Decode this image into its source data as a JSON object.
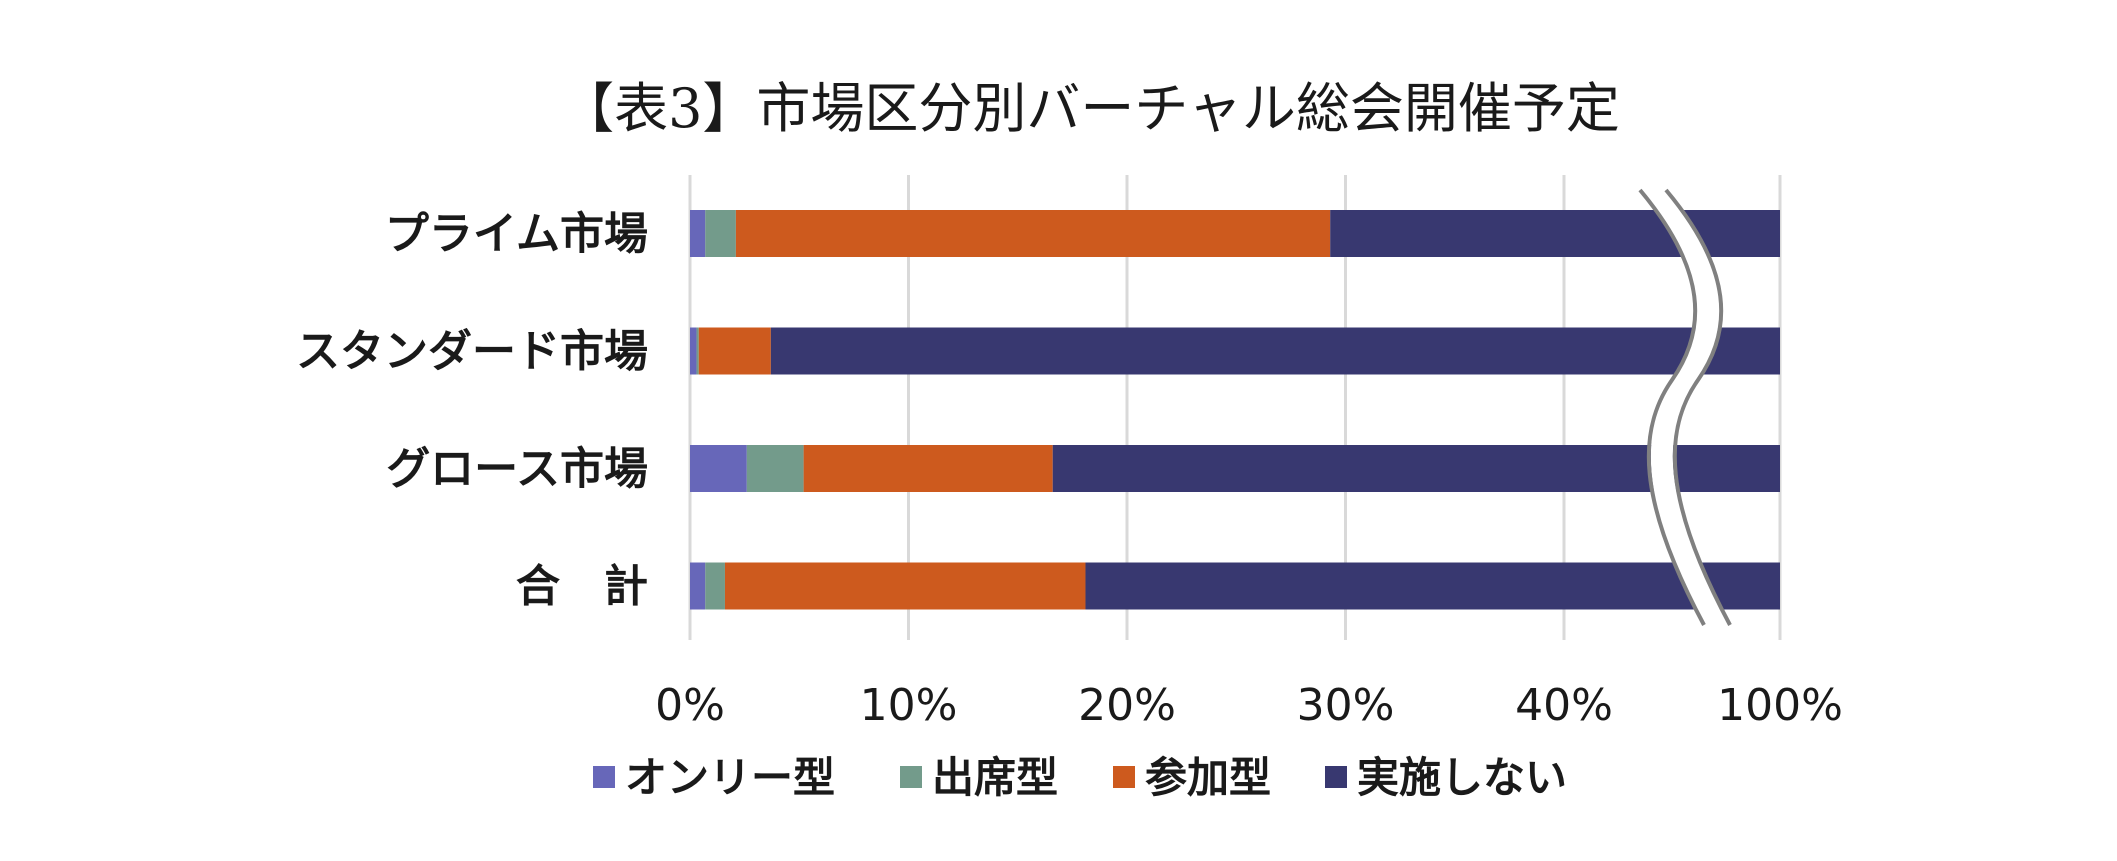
{
  "chart_data": {
    "type": "bar",
    "orientation": "horizontal",
    "stacked": true,
    "title": "【表3】市場区分別バーチャル総会開催予定",
    "categories": [
      "プライム市場",
      "スタンダード市場",
      "グロース市場",
      "合　計"
    ],
    "series": [
      {
        "name": "オンリー型",
        "color": "#6767b9",
        "values": [
          0.7,
          0.3,
          2.6,
          0.7
        ]
      },
      {
        "name": "出席型",
        "color": "#739b8b",
        "values": [
          1.4,
          0.1,
          2.6,
          0.9
        ]
      },
      {
        "name": "参加型",
        "color": "#cd5a1e",
        "values": [
          27.2,
          3.3,
          11.4,
          16.5
        ]
      },
      {
        "name": "実施しない",
        "color": "#383870",
        "values": [
          70.7,
          96.3,
          83.4,
          81.9
        ]
      }
    ],
    "x_ticks": [
      "0%",
      "10%",
      "20%",
      "30%",
      "40%",
      "100%"
    ],
    "x_axis_break": {
      "from": 45,
      "to": 95
    },
    "xlim": [
      0,
      100
    ],
    "grid": true,
    "legend": "bottom"
  }
}
